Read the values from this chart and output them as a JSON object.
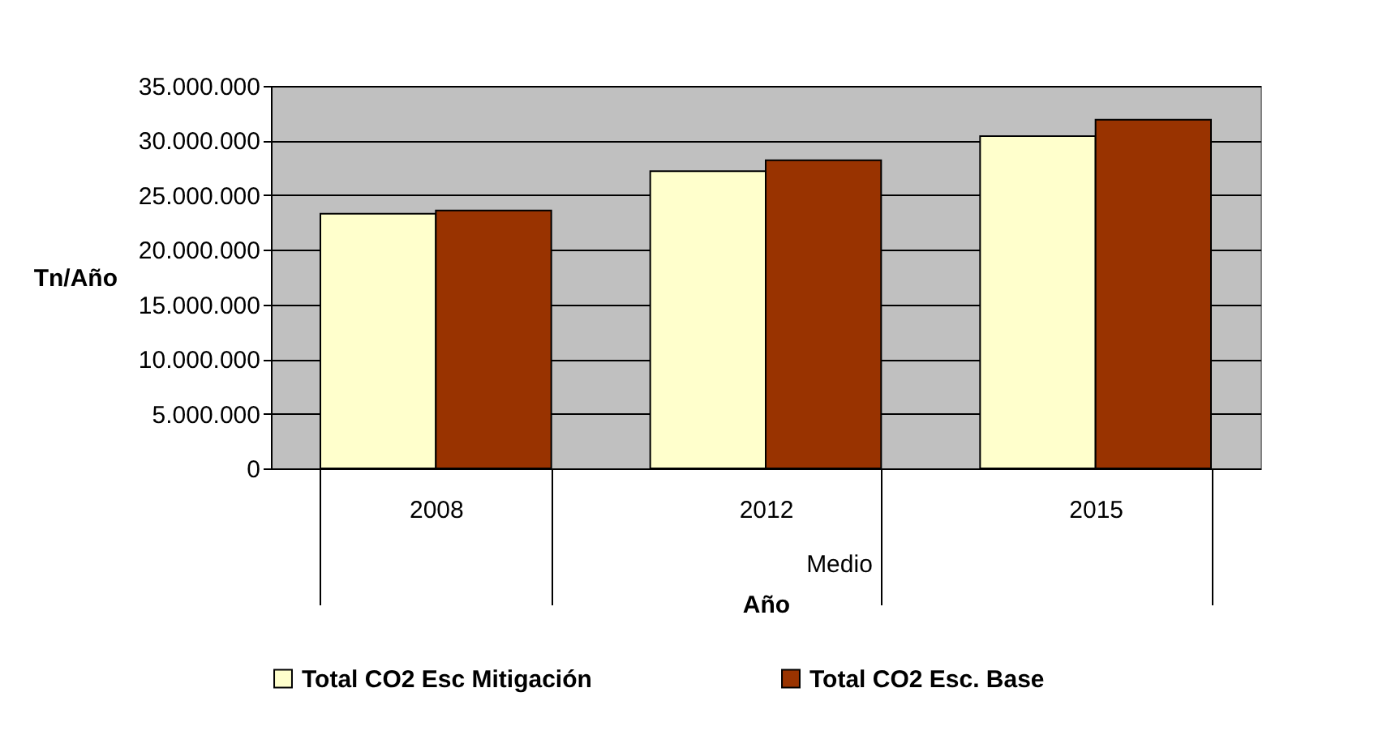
{
  "chart_data": {
    "type": "bar",
    "xlabel": "Año",
    "ylabel": "Tn/Año",
    "annotations": [
      "Medio"
    ],
    "categories": [
      "2008",
      "2012",
      "2015"
    ],
    "series": [
      {
        "name": "Total  CO2 Esc Mitigación",
        "color": "#ffffcc",
        "values": [
          23300000,
          27200000,
          30400000
        ]
      },
      {
        "name": "Total  CO2 Esc. Base",
        "color": "#993300",
        "values": [
          23600000,
          28200000,
          31900000
        ]
      }
    ],
    "ylim": [
      0,
      35000000
    ],
    "yticks": [
      {
        "value": 0,
        "label": "0"
      },
      {
        "value": 5000000,
        "label": "5.000.000"
      },
      {
        "value": 10000000,
        "label": "10.000.000"
      },
      {
        "value": 15000000,
        "label": "15.000.000"
      },
      {
        "value": 20000000,
        "label": "20.000.000"
      },
      {
        "value": 25000000,
        "label": "25.000.000"
      },
      {
        "value": 30000000,
        "label": "30.000.000"
      },
      {
        "value": 35000000,
        "label": "35.000.000"
      }
    ],
    "grid": "y",
    "legend": "bottom"
  }
}
